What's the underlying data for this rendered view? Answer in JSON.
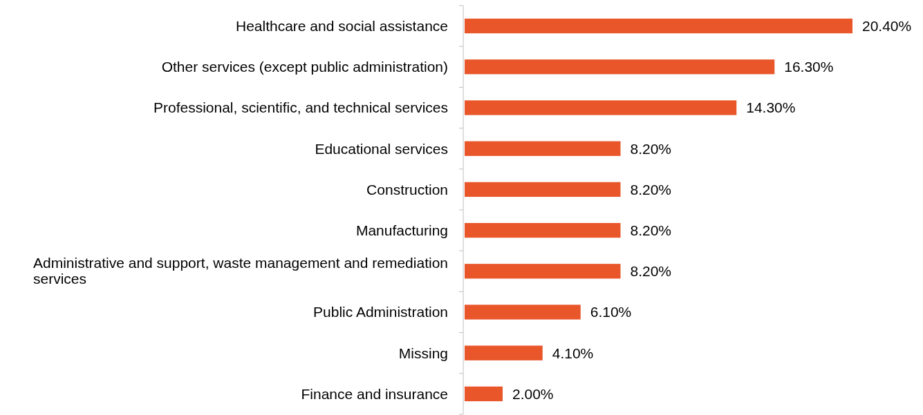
{
  "chart_data": {
    "type": "bar",
    "orientation": "horizontal",
    "categories": [
      "Healthcare and social assistance",
      "Other services (except public administration)",
      "Professional, scientific, and technical services",
      "Educational services",
      "Construction",
      "Manufacturing",
      "Administrative and support, waste management and remediation services",
      "Public Administration",
      "Missing",
      "Finance and insurance"
    ],
    "values": [
      20.4,
      16.3,
      14.3,
      8.2,
      8.2,
      8.2,
      8.2,
      6.1,
      4.1,
      2.0
    ],
    "value_labels": [
      "20.40%",
      "16.30%",
      "14.30%",
      "8.20%",
      "8.20%",
      "8.20%",
      "8.20%",
      "6.10%",
      "4.10%",
      "2.00%"
    ],
    "color": "#e8562a"
  }
}
